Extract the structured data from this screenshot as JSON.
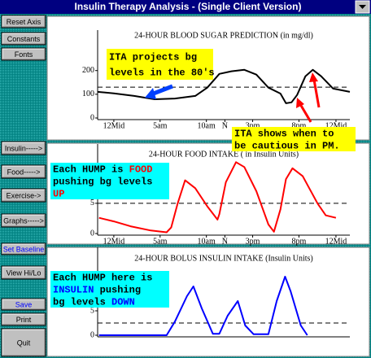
{
  "window": {
    "title": "Insulin Therapy Analysis - (Single Client Version)"
  },
  "buttons": [
    {
      "label": "Reset Axis"
    },
    {
      "label": "Constants"
    },
    {
      "label": "Fonts"
    },
    {
      "label": "Insulin----->"
    },
    {
      "label": "Food----->"
    },
    {
      "label": "Exercise->"
    },
    {
      "label": "Graphs----->"
    },
    {
      "label": "Set Baseline",
      "color": "#0000ff"
    },
    {
      "label": "View Hi/Lo"
    },
    {
      "label": "Save",
      "color": "#0000ff"
    },
    {
      "label": "Print"
    },
    {
      "label": "Quit"
    }
  ],
  "chart_data": [
    {
      "type": "line",
      "title": "24-HOUR BLOOD SUGAR PREDICTION (in mg/dl)",
      "color": "#000000",
      "x": [
        -1.75,
        0,
        2.2,
        4.4,
        6.6,
        8.8,
        10.1,
        11.4,
        12.7,
        14.1,
        15.4,
        16.7,
        18.0,
        18.6,
        19.2,
        19.8,
        20.7,
        21.5,
        22.4,
        23.7,
        25.5
      ],
      "values": [
        110,
        104,
        93,
        79,
        82,
        93,
        128,
        186,
        197,
        203,
        183,
        128,
        103,
        62,
        66,
        97,
        176,
        203,
        176,
        124,
        110
      ],
      "baseline": 130,
      "xlim": [
        -1.75,
        25.5
      ],
      "ylim": [
        0,
        350
      ],
      "yticks": [
        0,
        100,
        200
      ],
      "xticks": [
        {
          "value": 0,
          "label": "12Mid"
        },
        {
          "value": 5,
          "label": "5am"
        },
        {
          "value": 10,
          "label": "10am"
        },
        {
          "value": 12,
          "label": "N"
        },
        {
          "value": 15,
          "label": "3pm"
        },
        {
          "value": 20,
          "label": "8pm"
        },
        {
          "value": 24,
          "label": "12Mid"
        }
      ]
    },
    {
      "type": "line",
      "title": "24-HOUR FOOD INTAKE ( in Insulin Units)",
      "color": "#ff0000",
      "x": [
        -1.6,
        0,
        1.8,
        4,
        5.7,
        6.2,
        6.9,
        7.7,
        8.8,
        10.1,
        11.2,
        11.4,
        12.1,
        13.2,
        14.1,
        15.4,
        16.7,
        17.3,
        18,
        18.6,
        19.3,
        20.4,
        22,
        22.9,
        24
      ],
      "values": [
        2.6,
        2,
        1.2,
        0.5,
        0.2,
        1,
        5,
        8.8,
        7.5,
        4.5,
        2.3,
        3.2,
        8.5,
        11.8,
        11,
        7,
        1.5,
        0.3,
        4,
        9,
        10.8,
        9.5,
        5,
        3,
        2.6
      ],
      "baseline": 5,
      "xlim": [
        -1.75,
        25.5
      ],
      "ylim": [
        0,
        14
      ],
      "yticks": [
        0,
        5,
        10
      ],
      "xticks": [
        {
          "value": 0,
          "label": "12Mid"
        },
        {
          "value": 5,
          "label": "5am"
        },
        {
          "value": 10,
          "label": "10am"
        },
        {
          "value": 12,
          "label": "N"
        },
        {
          "value": 15,
          "label": "3pm"
        },
        {
          "value": 20,
          "label": "8pm"
        },
        {
          "value": 24,
          "label": "12Mid"
        }
      ]
    },
    {
      "type": "line",
      "title": "24-HOUR BOLUS INSULIN INTAKE (Insulin Units)",
      "color": "#0000ff",
      "x": [
        -1.6,
        5.7,
        6.6,
        7.9,
        8.6,
        9.5,
        10.7,
        11.4,
        12.3,
        13.4,
        14.2,
        15.1,
        16.7,
        17.6,
        18.5,
        19.1,
        20.2,
        20.9
      ],
      "values": [
        0,
        0,
        2.8,
        8,
        10,
        5.5,
        0.3,
        0.3,
        4,
        7,
        2,
        0.2,
        0.2,
        7,
        12,
        9,
        2,
        0
      ],
      "baseline": 2.5,
      "xlim": [
        -1.75,
        25.5
      ],
      "ylim": [
        0,
        17
      ],
      "yticks": [
        0,
        5
      ]
    }
  ],
  "annotations": [
    {
      "lines": [
        [
          "ITA projects bg"
        ],
        [
          "levels in the 80's"
        ]
      ],
      "background": "#ffff00"
    },
    {
      "lines": [
        [
          "ITA shows when to"
        ],
        [
          "be cautious in PM."
        ]
      ],
      "background": "#ffff00"
    },
    {
      "lines": [
        [
          "Each HUMP is ",
          {
            "text": "FOOD",
            "color": "#ff0000"
          }
        ],
        [
          "pushing bg levels"
        ],
        [
          {
            "text": "UP",
            "color": "#ff0000"
          }
        ]
      ],
      "background": "#00ffff"
    },
    {
      "lines": [
        [
          "Each HUMP here is"
        ],
        [
          {
            "text": "INSULIN",
            "color": "#0000ff"
          },
          " pushing"
        ],
        [
          "bg levels ",
          {
            "text": "DOWN",
            "color": "#0000ff"
          }
        ]
      ],
      "background": "#00ffff"
    }
  ]
}
